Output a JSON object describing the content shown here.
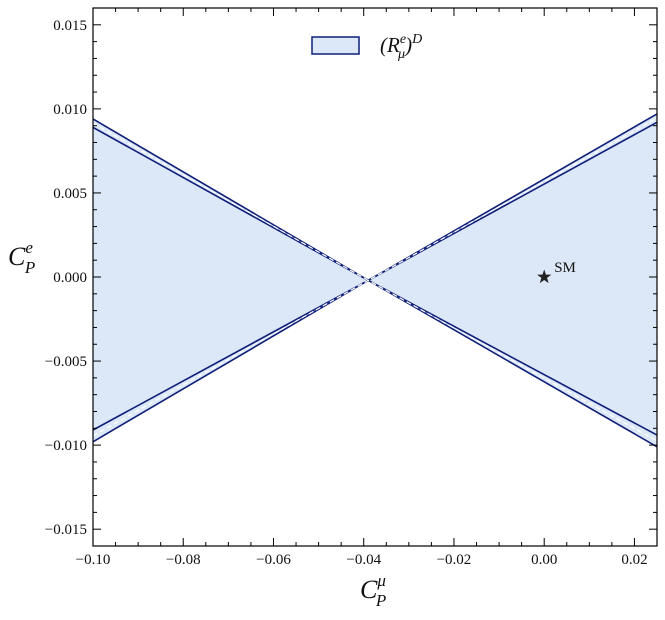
{
  "chart_data": {
    "type": "region",
    "xlabel": {
      "base": "C",
      "sub": "P",
      "sup": "μ"
    },
    "ylabel": {
      "base": "C",
      "sub": "P",
      "sup": "e"
    },
    "xlim": [
      -0.1,
      0.025
    ],
    "ylim": [
      -0.016,
      0.016
    ],
    "xticks": [
      {
        "value": -0.1,
        "label": "−0.10"
      },
      {
        "value": -0.08,
        "label": "−0.08"
      },
      {
        "value": -0.06,
        "label": "−0.06"
      },
      {
        "value": -0.04,
        "label": "−0.04"
      },
      {
        "value": -0.02,
        "label": "−0.02"
      },
      {
        "value": 0,
        "label": "0.00"
      },
      0.02
    ],
    "yticks": [
      {
        "value": -0.015,
        "label": "−0.015"
      },
      {
        "value": -0.01,
        "label": "−0.010"
      },
      {
        "value": -0.005,
        "label": "−0.005"
      },
      {
        "value": 0,
        "label": "0.000"
      },
      0.005,
      {
        "value": 0.01,
        "label": "0.010"
      },
      0.015
    ],
    "xminorticks": [
      -0.095,
      -0.09,
      -0.085,
      -0.075,
      -0.07,
      -0.065,
      -0.055,
      -0.05,
      -0.045,
      -0.035,
      -0.03,
      -0.025,
      -0.015,
      -0.01,
      -0.005,
      0.005,
      0.01,
      0.015,
      0.025
    ],
    "yminorticks": [
      -0.016,
      -0.014,
      -0.013,
      -0.012,
      -0.011,
      -0.009,
      -0.008,
      -0.007,
      -0.006,
      -0.004,
      -0.003,
      -0.002,
      -0.001,
      0.001,
      0.002,
      0.003,
      0.004,
      0.006,
      0.007,
      0.008,
      0.009,
      0.011,
      0.012,
      0.013,
      0.014,
      0.016
    ],
    "region": {
      "label": {
        "open": "(R",
        "sub": "μ",
        "sup": "e",
        "close": ")",
        "sup2": "D"
      },
      "fill": "#dce7f8",
      "edge": "#0f1f78",
      "x": [
        -0.1,
        -0.039,
        0.025,
        0.025,
        -0.039,
        -0.1
      ],
      "y": [
        0.0094,
        -0.0002,
        0.0097,
        -0.0101,
        -0.0002,
        -0.0098
      ]
    },
    "boundaries": [
      {
        "style": "solid",
        "x": [
          -0.1,
          -0.039,
          0.025
        ],
        "y": [
          0.0094,
          -0.0002,
          0.0097
        ]
      },
      {
        "style": "solid",
        "x": [
          -0.1,
          -0.039,
          0.025
        ],
        "y": [
          0.0089,
          -0.0002,
          0.0092
        ]
      },
      {
        "style": "dashed",
        "x": [
          -0.1,
          -0.039,
          0.025
        ],
        "y": [
          0.00915,
          -0.0002,
          0.00945
        ]
      },
      {
        "style": "solid",
        "x": [
          -0.1,
          -0.039,
          0.025
        ],
        "y": [
          -0.0091,
          -0.0002,
          -0.0094
        ]
      },
      {
        "style": "solid",
        "x": [
          -0.1,
          -0.039,
          0.025
        ],
        "y": [
          -0.0098,
          -0.0002,
          -0.0101
        ]
      },
      {
        "style": "dashed",
        "x": [
          -0.1,
          -0.039,
          0.025
        ],
        "y": [
          -0.00945,
          -0.0002,
          -0.00975
        ]
      }
    ],
    "point": {
      "label": "SM",
      "x": 0,
      "y": 0,
      "color": "#222222"
    }
  }
}
